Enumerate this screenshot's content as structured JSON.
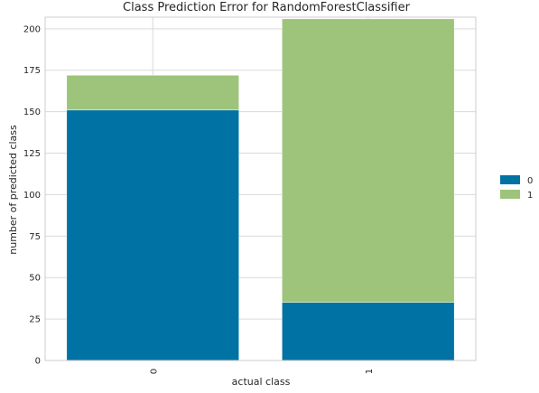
{
  "chart_data": {
    "type": "bar",
    "stacked": true,
    "title": "Class Prediction Error for RandomForestClassifier",
    "xlabel": "actual class",
    "ylabel": "number of predicted class",
    "categories": [
      "0",
      "1"
    ],
    "series": [
      {
        "name": "0",
        "color": "#0072a3",
        "values": [
          151,
          35
        ]
      },
      {
        "name": "1",
        "color": "#9dc47a",
        "values": [
          21,
          171
        ]
      }
    ],
    "ylim": [
      0,
      207
    ],
    "yticks": [
      0,
      25,
      50,
      75,
      100,
      125,
      150,
      175,
      200
    ],
    "grid": true,
    "legend_position": "right"
  }
}
